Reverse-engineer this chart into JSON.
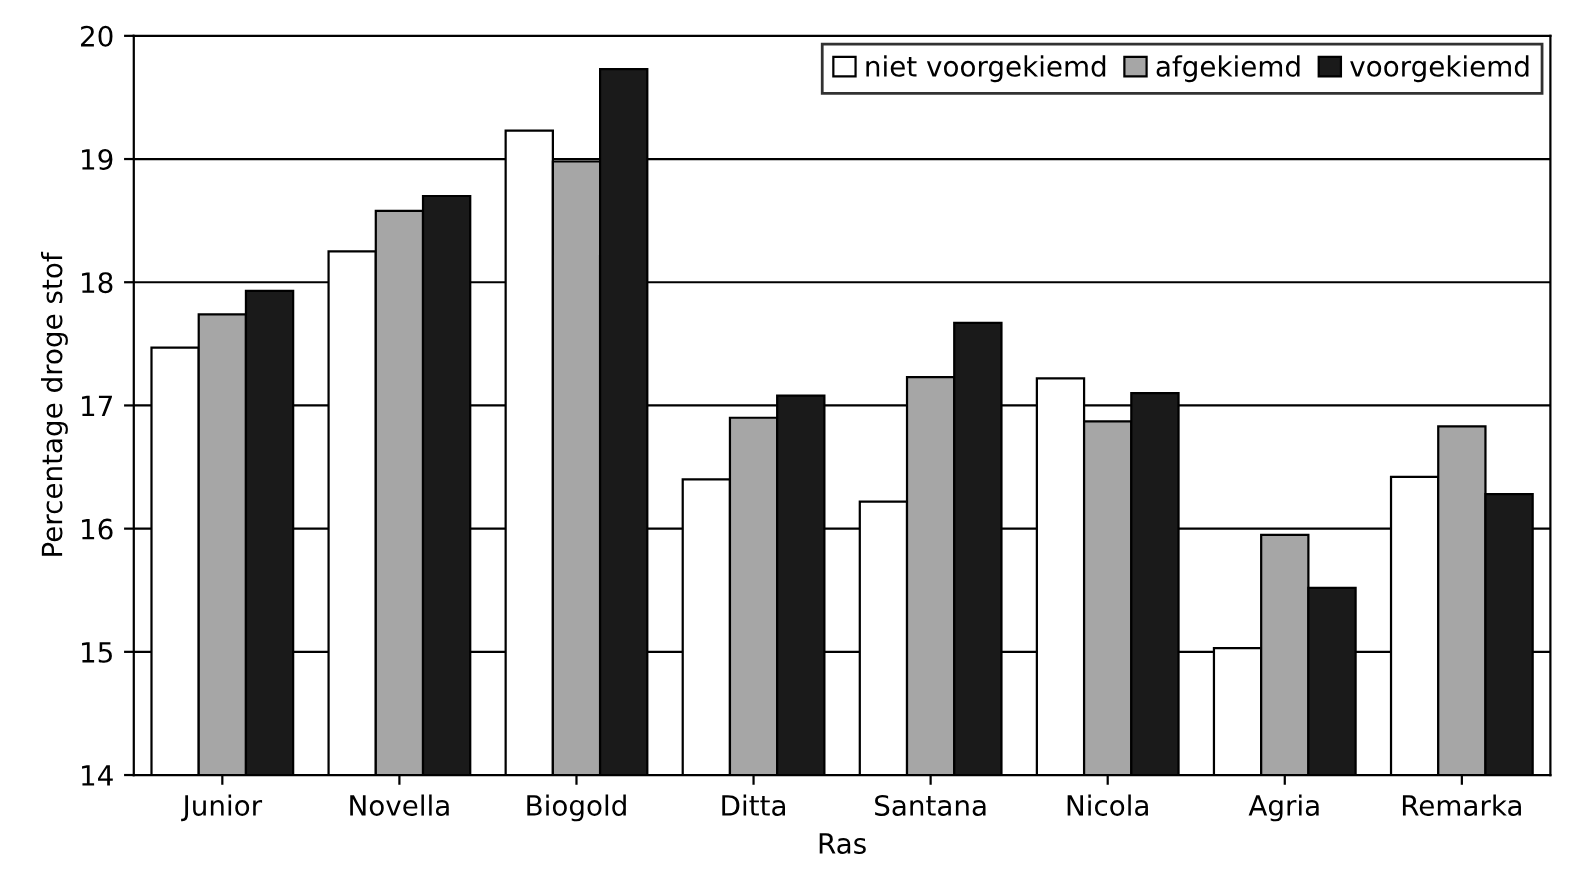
{
  "chart_data": {
    "type": "bar",
    "xlabel": "Ras",
    "ylabel": "Percentage droge stof",
    "categories": [
      "Junior",
      "Novella",
      "Biogold",
      "Ditta",
      "Santana",
      "Nicola",
      "Agria",
      "Remarka"
    ],
    "series": [
      {
        "name": "niet voorgekiemd",
        "color": "#ffffff",
        "values": [
          17.47,
          18.25,
          19.23,
          16.4,
          16.22,
          17.22,
          15.03,
          16.42
        ]
      },
      {
        "name": "afgekiemd",
        "color": "#a6a6a6",
        "values": [
          17.74,
          18.58,
          18.98,
          16.9,
          17.23,
          16.87,
          15.95,
          16.83
        ]
      },
      {
        "name": "voorgekiemd",
        "color": "#1a1a1a",
        "values": [
          17.93,
          18.7,
          19.73,
          17.08,
          17.67,
          17.1,
          15.52,
          16.28
        ]
      }
    ],
    "ylim": [
      14,
      20
    ],
    "yticks": [
      14,
      15,
      16,
      17,
      18,
      19,
      20
    ],
    "grid": "y",
    "legend": "top right"
  }
}
